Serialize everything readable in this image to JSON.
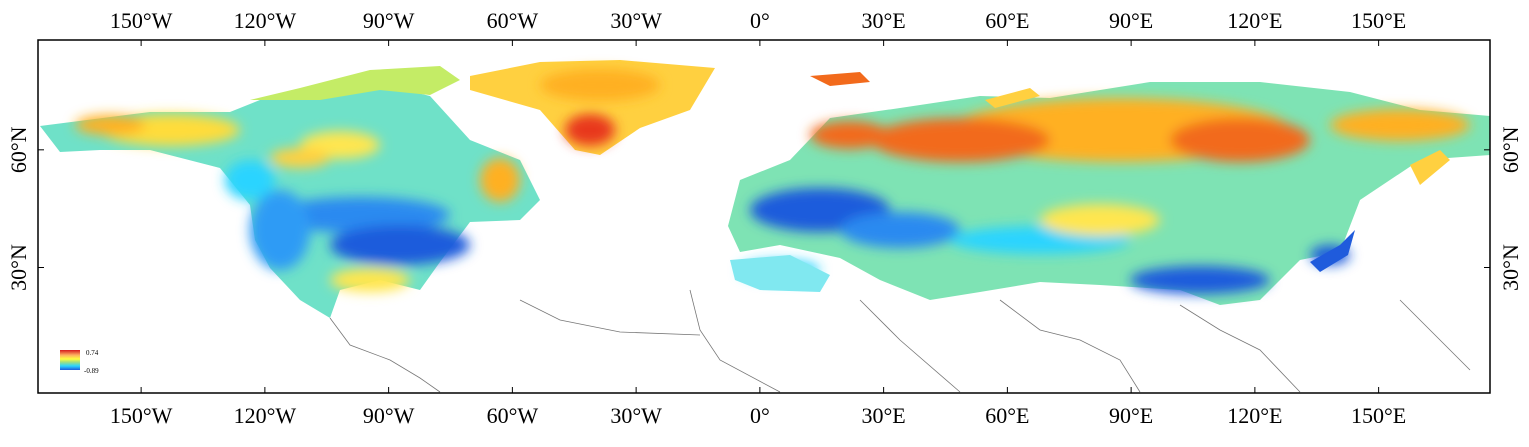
{
  "map": {
    "longitude_ticks": [
      {
        "lon": -150,
        "label": "150°W"
      },
      {
        "lon": -120,
        "label": "120°W"
      },
      {
        "lon": -90,
        "label": "90°W"
      },
      {
        "lon": -60,
        "label": "60°W"
      },
      {
        "lon": -30,
        "label": "30°W"
      },
      {
        "lon": 0,
        "label": "0°"
      },
      {
        "lon": 30,
        "label": "30°E"
      },
      {
        "lon": 60,
        "label": "60°E"
      },
      {
        "lon": 90,
        "label": "90°E"
      },
      {
        "lon": 120,
        "label": "120°E"
      },
      {
        "lon": 150,
        "label": "150°E"
      }
    ],
    "latitude_ticks": [
      {
        "lat": 60,
        "label": "60°N"
      },
      {
        "lat": 30,
        "label": "30°N"
      }
    ],
    "extent": {
      "lon_min": -175,
      "lon_max": 177,
      "lat_max": 88,
      "lat_min": -2
    },
    "legend": {
      "max_label": "0.74",
      "min_label": "-0.89",
      "colors": [
        "#d7191c",
        "#fdae61",
        "#ffff40",
        "#a6e07a",
        "#2bd4ff",
        "#1f5bdc"
      ]
    }
  }
}
